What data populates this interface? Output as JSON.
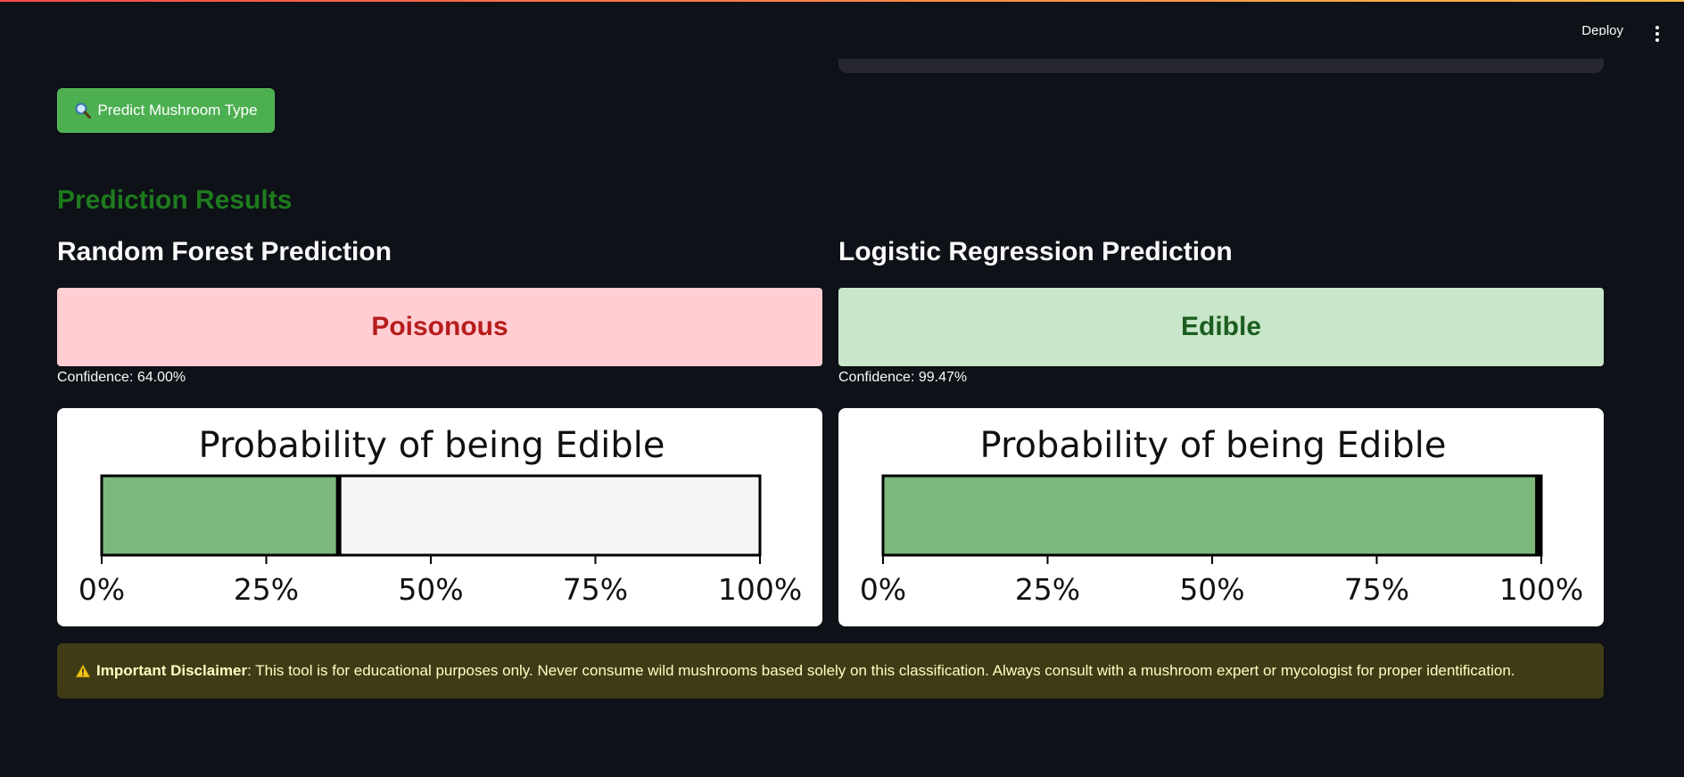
{
  "header": {
    "deploy_label": "Deploy",
    "menu_icon": "vertical-dots-icon"
  },
  "predict_button": {
    "icon": "magnifier-icon",
    "label": "Predict Mushroom Type"
  },
  "results": {
    "title": "Prediction Results",
    "random_forest": {
      "heading": "Random Forest Prediction",
      "verdict": "Poisonous",
      "confidence": "Confidence: 64.00%"
    },
    "logistic_regression": {
      "heading": "Logistic Regression Prediction",
      "verdict": "Edible",
      "confidence": "Confidence: 99.47%"
    }
  },
  "colors": {
    "edible_fill": "#7cb87c",
    "remainder_fill": "#f5f5f5",
    "poison_bg": "#ffcdd2",
    "poison_text": "#b71c1c",
    "edible_bg": "#c8e6c9",
    "edible_text": "#1b5e20",
    "section_title": "#1e7b1e"
  },
  "chart_data": [
    {
      "type": "bar",
      "orientation": "horizontal",
      "title": "Probability of being Edible",
      "value": 0.36,
      "xlim": [
        0,
        1
      ],
      "ticks": [
        "0%",
        "25%",
        "50%",
        "75%",
        "100%"
      ]
    },
    {
      "type": "bar",
      "orientation": "horizontal",
      "title": "Probability of being Edible",
      "value": 0.9947,
      "xlim": [
        0,
        1
      ],
      "ticks": [
        "0%",
        "25%",
        "50%",
        "75%",
        "100%"
      ]
    }
  ],
  "disclaimer": {
    "icon": "warning-icon",
    "label": "Important Disclaimer",
    "text": ": This tool is for educational purposes only. Never consume wild mushrooms based solely on this classification. Always consult with a mushroom expert or mycologist for proper identification."
  }
}
